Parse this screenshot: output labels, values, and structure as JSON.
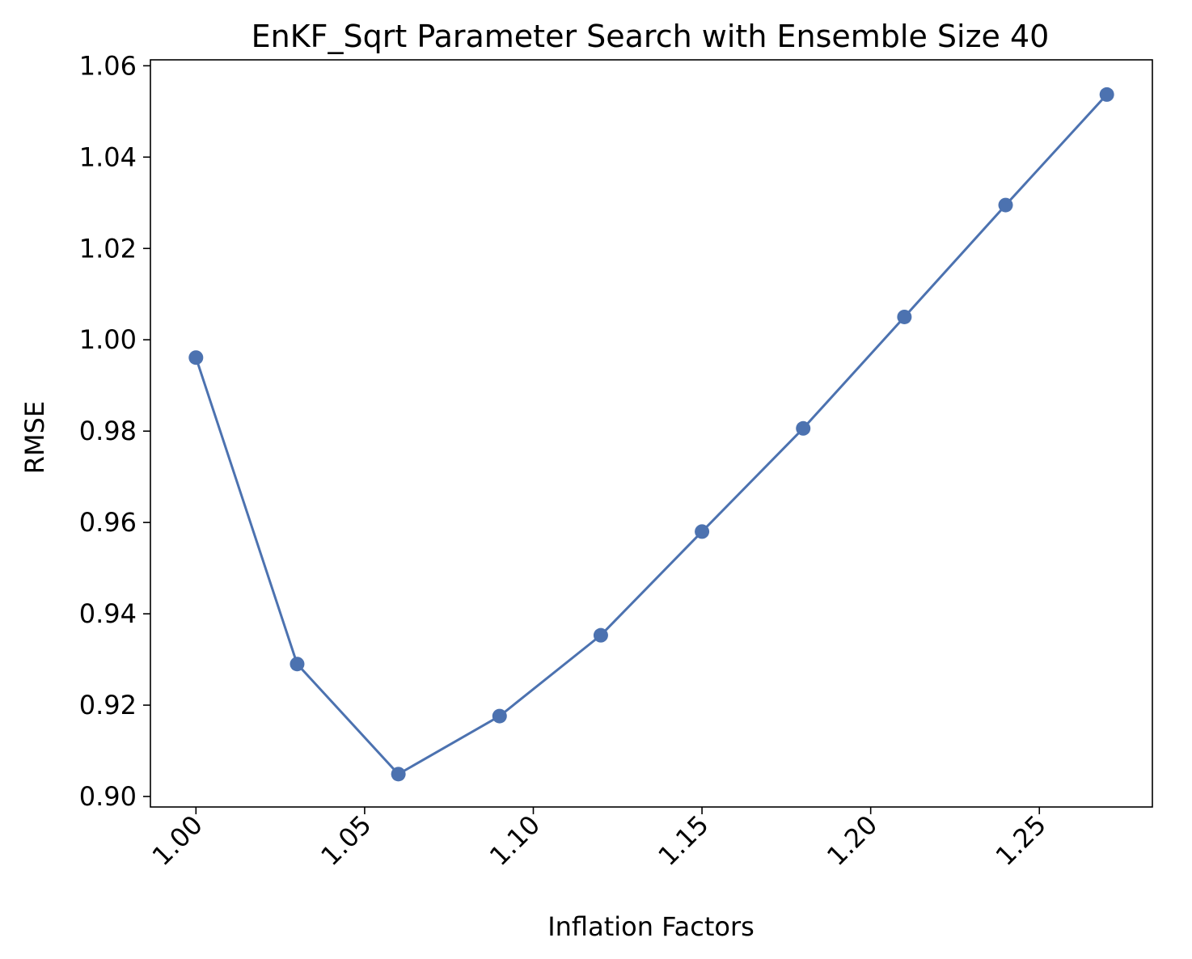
{
  "chart_data": {
    "type": "line",
    "title": "EnKF_Sqrt Parameter Search with Ensemble Size 40",
    "xlabel": "Inflation Factors",
    "ylabel": "RMSE",
    "x": [
      1.0,
      1.03,
      1.06,
      1.09,
      1.12,
      1.15,
      1.18,
      1.21,
      1.24,
      1.27
    ],
    "series": [
      {
        "values": [
          0.9961,
          0.929,
          0.9049,
          0.9176,
          0.9353,
          0.958,
          0.9806,
          1.005,
          1.0295,
          1.0537
        ],
        "color": "#4c72b0"
      }
    ],
    "xlim": [
      0.9865,
      1.2835
    ],
    "ylim": [
      0.8977,
      1.0613
    ],
    "xticks": [
      1.0,
      1.05,
      1.1,
      1.15,
      1.2,
      1.25
    ],
    "xtick_labels": [
      "1.00",
      "1.05",
      "1.10",
      "1.15",
      "1.20",
      "1.25"
    ],
    "yticks": [
      0.9,
      0.92,
      0.94,
      0.96,
      0.98,
      1.0,
      1.02,
      1.04,
      1.06
    ],
    "ytick_labels": [
      "0.90",
      "0.92",
      "0.94",
      "0.96",
      "0.98",
      "1.00",
      "1.02",
      "1.04",
      "1.06"
    ],
    "grid": false,
    "legend": "none",
    "marker": "circle",
    "xtick_rotation": 45
  }
}
